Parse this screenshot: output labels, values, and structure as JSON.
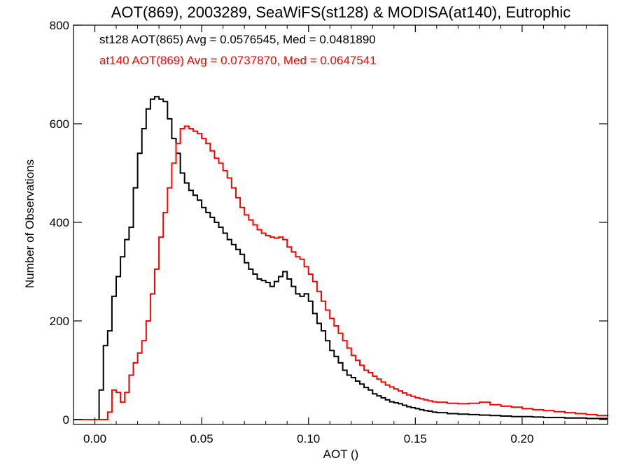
{
  "chart_data": {
    "type": "line",
    "drawstyle": "steps",
    "title": "AOT(869), 2003289, SeaWiFS(st128) & MODISA(at140), Eutrophic",
    "xlabel": "AOT ()",
    "ylabel": "Number of Observations",
    "xlim": [
      -0.01,
      0.24
    ],
    "ylim": [
      -10,
      800
    ],
    "x_ticks": [
      0.0,
      0.05,
      0.1,
      0.15,
      0.2
    ],
    "x_tick_labels": [
      "0.00",
      "0.05",
      "0.10",
      "0.15",
      "0.20"
    ],
    "y_ticks": [
      0,
      200,
      400,
      600,
      800
    ],
    "y_tick_labels": [
      "0",
      "200",
      "400",
      "600",
      "800"
    ],
    "legend_position": "top-left",
    "series": [
      {
        "name": "st128",
        "legend_text": "st128 AOT(865) Avg = 0.0576545, Med = 0.0481890",
        "color": "#000000",
        "points": [
          [
            -0.01,
            0
          ],
          [
            0.0,
            0
          ],
          [
            0.002,
            60
          ],
          [
            0.004,
            150
          ],
          [
            0.006,
            180
          ],
          [
            0.008,
            250
          ],
          [
            0.01,
            290
          ],
          [
            0.012,
            330
          ],
          [
            0.014,
            365
          ],
          [
            0.016,
            390
          ],
          [
            0.018,
            470
          ],
          [
            0.02,
            540
          ],
          [
            0.022,
            590
          ],
          [
            0.024,
            630
          ],
          [
            0.026,
            650
          ],
          [
            0.028,
            655
          ],
          [
            0.03,
            650
          ],
          [
            0.032,
            645
          ],
          [
            0.034,
            610
          ],
          [
            0.036,
            570
          ],
          [
            0.038,
            540
          ],
          [
            0.04,
            500
          ],
          [
            0.042,
            480
          ],
          [
            0.044,
            465
          ],
          [
            0.046,
            455
          ],
          [
            0.048,
            445
          ],
          [
            0.05,
            430
          ],
          [
            0.052,
            420
          ],
          [
            0.054,
            410
          ],
          [
            0.056,
            400
          ],
          [
            0.058,
            390
          ],
          [
            0.06,
            378
          ],
          [
            0.062,
            365
          ],
          [
            0.064,
            355
          ],
          [
            0.066,
            345
          ],
          [
            0.068,
            335
          ],
          [
            0.07,
            318
          ],
          [
            0.072,
            305
          ],
          [
            0.074,
            295
          ],
          [
            0.076,
            285
          ],
          [
            0.078,
            282
          ],
          [
            0.08,
            278
          ],
          [
            0.082,
            270
          ],
          [
            0.084,
            280
          ],
          [
            0.086,
            290
          ],
          [
            0.088,
            300
          ],
          [
            0.09,
            285
          ],
          [
            0.092,
            270
          ],
          [
            0.094,
            255
          ],
          [
            0.096,
            250
          ],
          [
            0.098,
            255
          ],
          [
            0.1,
            240
          ],
          [
            0.102,
            215
          ],
          [
            0.104,
            195
          ],
          [
            0.106,
            180
          ],
          [
            0.108,
            160
          ],
          [
            0.11,
            140
          ],
          [
            0.112,
            128
          ],
          [
            0.114,
            115
          ],
          [
            0.116,
            100
          ],
          [
            0.118,
            90
          ],
          [
            0.12,
            85
          ],
          [
            0.122,
            78
          ],
          [
            0.124,
            72
          ],
          [
            0.126,
            65
          ],
          [
            0.128,
            60
          ],
          [
            0.13,
            52
          ],
          [
            0.132,
            48
          ],
          [
            0.134,
            44
          ],
          [
            0.136,
            40
          ],
          [
            0.138,
            36
          ],
          [
            0.14,
            34
          ],
          [
            0.142,
            32
          ],
          [
            0.144,
            29
          ],
          [
            0.146,
            26
          ],
          [
            0.148,
            24
          ],
          [
            0.15,
            22
          ],
          [
            0.152,
            20
          ],
          [
            0.154,
            18
          ],
          [
            0.156,
            17
          ],
          [
            0.158,
            15
          ],
          [
            0.16,
            14
          ],
          [
            0.165,
            12
          ],
          [
            0.17,
            11
          ],
          [
            0.175,
            10
          ],
          [
            0.18,
            9
          ],
          [
            0.185,
            8
          ],
          [
            0.19,
            7
          ],
          [
            0.195,
            6
          ],
          [
            0.2,
            6
          ],
          [
            0.205,
            5
          ],
          [
            0.21,
            4
          ],
          [
            0.215,
            4
          ],
          [
            0.22,
            3
          ],
          [
            0.225,
            3
          ],
          [
            0.23,
            2
          ],
          [
            0.235,
            2
          ],
          [
            0.24,
            2
          ]
        ]
      },
      {
        "name": "at140",
        "legend_text": "at140 AOT(869) Avg = 0.0737870, Med = 0.0647541",
        "color": "#ff0000",
        "points": [
          [
            -0.01,
            0
          ],
          [
            0.004,
            0
          ],
          [
            0.006,
            15
          ],
          [
            0.008,
            60
          ],
          [
            0.01,
            55
          ],
          [
            0.012,
            35
          ],
          [
            0.014,
            55
          ],
          [
            0.016,
            90
          ],
          [
            0.018,
            115
          ],
          [
            0.02,
            135
          ],
          [
            0.022,
            160
          ],
          [
            0.024,
            200
          ],
          [
            0.026,
            255
          ],
          [
            0.028,
            305
          ],
          [
            0.03,
            370
          ],
          [
            0.032,
            420
          ],
          [
            0.034,
            470
          ],
          [
            0.036,
            520
          ],
          [
            0.038,
            560
          ],
          [
            0.04,
            590
          ],
          [
            0.042,
            595
          ],
          [
            0.044,
            590
          ],
          [
            0.046,
            585
          ],
          [
            0.048,
            580
          ],
          [
            0.05,
            570
          ],
          [
            0.052,
            560
          ],
          [
            0.054,
            545
          ],
          [
            0.056,
            530
          ],
          [
            0.058,
            520
          ],
          [
            0.06,
            505
          ],
          [
            0.062,
            490
          ],
          [
            0.064,
            470
          ],
          [
            0.066,
            450
          ],
          [
            0.068,
            430
          ],
          [
            0.07,
            415
          ],
          [
            0.072,
            405
          ],
          [
            0.074,
            395
          ],
          [
            0.076,
            385
          ],
          [
            0.078,
            378
          ],
          [
            0.08,
            373
          ],
          [
            0.082,
            370
          ],
          [
            0.084,
            368
          ],
          [
            0.086,
            370
          ],
          [
            0.088,
            365
          ],
          [
            0.09,
            350
          ],
          [
            0.092,
            340
          ],
          [
            0.094,
            330
          ],
          [
            0.096,
            325
          ],
          [
            0.098,
            310
          ],
          [
            0.1,
            295
          ],
          [
            0.102,
            280
          ],
          [
            0.104,
            260
          ],
          [
            0.106,
            240
          ],
          [
            0.108,
            222
          ],
          [
            0.11,
            205
          ],
          [
            0.112,
            190
          ],
          [
            0.114,
            175
          ],
          [
            0.116,
            160
          ],
          [
            0.118,
            145
          ],
          [
            0.12,
            130
          ],
          [
            0.122,
            120
          ],
          [
            0.124,
            110
          ],
          [
            0.126,
            100
          ],
          [
            0.128,
            95
          ],
          [
            0.13,
            88
          ],
          [
            0.132,
            82
          ],
          [
            0.134,
            76
          ],
          [
            0.136,
            70
          ],
          [
            0.138,
            66
          ],
          [
            0.14,
            62
          ],
          [
            0.142,
            58
          ],
          [
            0.144,
            54
          ],
          [
            0.146,
            50
          ],
          [
            0.148,
            47
          ],
          [
            0.15,
            44
          ],
          [
            0.152,
            42
          ],
          [
            0.154,
            40
          ],
          [
            0.156,
            38
          ],
          [
            0.158,
            36
          ],
          [
            0.16,
            35
          ],
          [
            0.165,
            33
          ],
          [
            0.17,
            32
          ],
          [
            0.175,
            33
          ],
          [
            0.18,
            35
          ],
          [
            0.185,
            30
          ],
          [
            0.19,
            27
          ],
          [
            0.195,
            25
          ],
          [
            0.2,
            22
          ],
          [
            0.205,
            20
          ],
          [
            0.21,
            18
          ],
          [
            0.215,
            16
          ],
          [
            0.22,
            14
          ],
          [
            0.225,
            12
          ],
          [
            0.23,
            10
          ],
          [
            0.235,
            8
          ],
          [
            0.24,
            7
          ]
        ]
      }
    ]
  }
}
